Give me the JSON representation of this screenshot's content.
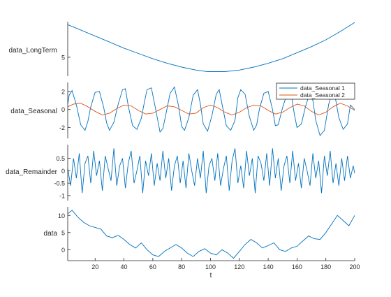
{
  "figure": {
    "xlabel": "t",
    "xticks": [
      "20",
      "40",
      "60",
      "80",
      "100",
      "120",
      "140",
      "160",
      "180",
      "200"
    ]
  },
  "colors": {
    "primary": "#0072BD",
    "secondary": "#D95319",
    "axis": "#262626"
  },
  "chart_data": [
    {
      "type": "line",
      "ylabel": "data_LongTerm",
      "yticks": [
        "5"
      ],
      "xlim": [
        1,
        200
      ],
      "ylim": [
        2.5,
        9.7
      ],
      "series": [
        {
          "x": [
            1,
            10,
            20,
            30,
            40,
            50,
            60,
            70,
            80,
            90,
            98,
            110,
            120,
            130,
            140,
            150,
            160,
            170,
            180,
            190,
            200
          ],
          "y": [
            9.3,
            8.6,
            7.8,
            7.0,
            6.2,
            5.5,
            4.8,
            4.2,
            3.7,
            3.3,
            3.1,
            3.1,
            3.3,
            3.7,
            4.2,
            4.8,
            5.6,
            6.4,
            7.3,
            8.4,
            9.6
          ]
        }
      ]
    },
    {
      "type": "line",
      "ylabel": "data_Seasonal",
      "yticks": [
        "2",
        "0",
        "-2"
      ],
      "xlim": [
        1,
        200
      ],
      "ylim": [
        -3.2,
        3.0
      ],
      "legend": "top-right",
      "series": [
        {
          "name": "data_Seasonal 1",
          "x": [
            1,
            2,
            4,
            7,
            10,
            13,
            15,
            17,
            20,
            23,
            26,
            28,
            30,
            33,
            36,
            39,
            41,
            43,
            46,
            49,
            52,
            54,
            56,
            59,
            62,
            65,
            67,
            69,
            72,
            75,
            78,
            80,
            82,
            85,
            88,
            91,
            93,
            95,
            98,
            101,
            104,
            106,
            108,
            111,
            114,
            117,
            119,
            121,
            124,
            127,
            130,
            132,
            134,
            137,
            140,
            143,
            145,
            147,
            150,
            153,
            156,
            158,
            160,
            163,
            166,
            169,
            171,
            173,
            176,
            179,
            182,
            184,
            186,
            189,
            192,
            195,
            197,
            200
          ],
          "y": [
            0.6,
            1.6,
            2.1,
            0.5,
            -1.7,
            -2.3,
            -1.3,
            0.3,
            1.9,
            2.0,
            0.2,
            -1.5,
            -2.3,
            -1.4,
            0.6,
            2.2,
            2.3,
            0.4,
            -1.8,
            -2.2,
            -1.0,
            0.7,
            2.2,
            2.4,
            0.0,
            -2.5,
            -2.1,
            -0.6,
            1.8,
            2.5,
            0.3,
            -1.9,
            -2.3,
            -0.9,
            1.6,
            2.2,
            0.6,
            -1.6,
            -2.4,
            -0.7,
            1.7,
            2.2,
            0.6,
            -1.8,
            -2.3,
            -1.2,
            1.3,
            2.2,
            1.7,
            -0.8,
            -2.3,
            -1.7,
            0.1,
            1.8,
            2.0,
            0.0,
            -1.8,
            -1.7,
            0.2,
            1.7,
            1.7,
            -0.4,
            -2.0,
            -1.6,
            0.4,
            1.9,
            1.0,
            -1.2,
            -2.9,
            -2.3,
            0.6,
            1.7,
            1.8,
            -0.9,
            -2.2,
            -1.6,
            0.5,
            0.0
          ]
        },
        {
          "name": "data_Seasonal 2",
          "x": [
            1,
            5,
            10,
            15,
            20,
            25,
            30,
            35,
            40,
            45,
            50,
            55,
            60,
            65,
            70,
            75,
            80,
            85,
            90,
            95,
            100,
            105,
            110,
            115,
            120,
            125,
            130,
            135,
            140,
            145,
            150,
            155,
            160,
            165,
            170,
            175,
            180,
            185,
            190,
            195,
            200
          ],
          "y": [
            0.3,
            0.6,
            0.7,
            0.3,
            -0.2,
            -0.6,
            -0.4,
            0.1,
            0.5,
            0.4,
            -0.1,
            -0.5,
            -0.4,
            0.0,
            0.4,
            0.3,
            -0.1,
            -0.5,
            -0.4,
            0.2,
            0.5,
            0.2,
            -0.3,
            -0.6,
            -0.3,
            0.2,
            0.5,
            0.4,
            -0.1,
            -0.5,
            -0.3,
            0.2,
            0.6,
            0.4,
            -0.2,
            -0.6,
            -0.3,
            0.3,
            0.7,
            0.4,
            -0.1
          ]
        }
      ]
    },
    {
      "type": "line",
      "ylabel": "data_Remainder",
      "yticks": [
        "0.5",
        "0",
        "-0.5",
        "-1"
      ],
      "xlim": [
        1,
        200
      ],
      "ylim": [
        -1.2,
        1.05
      ],
      "series": [
        {
          "x": [
            1,
            3,
            5,
            7,
            9,
            11,
            13,
            15,
            17,
            19,
            21,
            23,
            25,
            27,
            29,
            31,
            33,
            35,
            37,
            39,
            41,
            43,
            45,
            47,
            49,
            51,
            53,
            55,
            57,
            59,
            61,
            63,
            65,
            67,
            69,
            71,
            73,
            75,
            77,
            79,
            81,
            83,
            85,
            87,
            89,
            91,
            93,
            95,
            97,
            99,
            101,
            103,
            105,
            107,
            109,
            111,
            113,
            115,
            117,
            119,
            121,
            123,
            125,
            127,
            129,
            131,
            133,
            135,
            137,
            139,
            141,
            143,
            145,
            147,
            149,
            151,
            153,
            155,
            157,
            159,
            161,
            163,
            165,
            167,
            169,
            171,
            173,
            175,
            177,
            179,
            181,
            183,
            185,
            187,
            189,
            191,
            193,
            195,
            197,
            199,
            200
          ],
          "y": [
            0.1,
            -0.6,
            0.5,
            -0.3,
            0.7,
            -0.9,
            0.3,
            0.6,
            -0.5,
            0.8,
            -0.2,
            0.4,
            -0.8,
            0.6,
            0.1,
            -0.4,
            0.9,
            -0.6,
            0.2,
            0.5,
            -0.7,
            0.3,
            0.8,
            -0.5,
            0.0,
            0.6,
            -0.9,
            0.4,
            -0.2,
            0.7,
            -0.6,
            0.3,
            -0.4,
            0.8,
            -0.3,
            0.5,
            -0.8,
            0.2,
            0.6,
            -0.5,
            0.4,
            -0.7,
            0.7,
            0.0,
            -0.6,
            0.5,
            -0.3,
            0.8,
            -0.9,
            0.2,
            0.5,
            -0.4,
            0.7,
            -0.6,
            0.1,
            0.6,
            -0.8,
            0.4,
            0.9,
            -0.5,
            0.2,
            -0.7,
            0.8,
            -0.2,
            0.5,
            -0.9,
            0.6,
            0.3,
            -0.4,
            0.7,
            -0.6,
            0.9,
            -0.3,
            0.5,
            -0.8,
            0.2,
            0.6,
            -0.5,
            0.8,
            -0.4,
            0.3,
            -0.7,
            0.5,
            0.0,
            -0.6,
            0.7,
            -0.3,
            0.4,
            -0.9,
            0.6,
            -0.2,
            0.8,
            -0.5,
            0.3,
            -0.6,
            0.5,
            -0.4,
            0.6,
            -0.3,
            0.2,
            -0.1
          ]
        }
      ]
    },
    {
      "type": "line",
      "ylabel": "data",
      "yticks": [
        "10",
        "5",
        "0"
      ],
      "xlim": [
        1,
        200
      ],
      "ylim": [
        -3.2,
        12.5
      ],
      "series": [
        {
          "x": [
            1,
            4,
            8,
            12,
            16,
            20,
            24,
            28,
            32,
            36,
            40,
            44,
            48,
            52,
            56,
            60,
            64,
            68,
            72,
            76,
            80,
            84,
            88,
            92,
            96,
            100,
            104,
            108,
            112,
            116,
            120,
            124,
            128,
            132,
            136,
            140,
            144,
            148,
            152,
            156,
            160,
            164,
            168,
            172,
            176,
            180,
            184,
            188,
            192,
            196,
            200
          ],
          "y": [
            10.5,
            11.5,
            9.5,
            8.0,
            7.0,
            6.5,
            6.0,
            4.0,
            3.5,
            4.2,
            3.0,
            1.5,
            0.5,
            2.0,
            0.0,
            -1.5,
            -2.0,
            -0.5,
            0.5,
            1.5,
            0.5,
            -1.0,
            -2.0,
            -0.5,
            0.3,
            -1.0,
            -1.5,
            0.0,
            -1.0,
            -2.5,
            -0.5,
            1.5,
            3.0,
            2.0,
            0.5,
            1.2,
            2.0,
            0.0,
            -0.5,
            0.5,
            1.0,
            2.5,
            4.0,
            3.2,
            3.0,
            5.0,
            7.5,
            10.0,
            8.5,
            7.0,
            10.0
          ]
        }
      ]
    }
  ]
}
